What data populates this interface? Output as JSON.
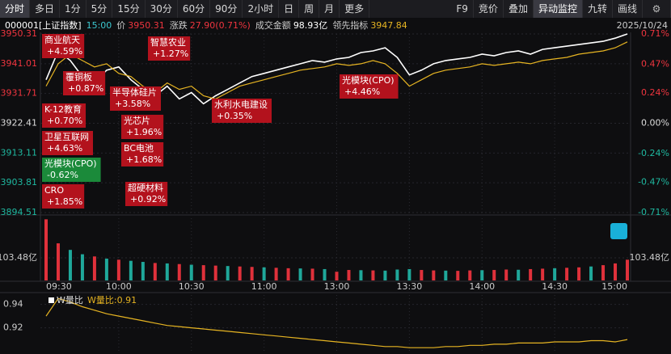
{
  "toolbar": {
    "left": [
      "分时",
      "多日",
      "1分",
      "5分",
      "15分",
      "30分",
      "60分",
      "90分",
      "2小时",
      "日",
      "周",
      "月",
      "更多"
    ],
    "right": [
      "F9",
      "竞价",
      "叠加",
      "异动监控",
      "九转",
      "画线"
    ]
  },
  "header": {
    "code": "000001[上证指数]",
    "time": "15:00",
    "price_label": "价",
    "price": 3950.31,
    "change_label": "涨跌",
    "change": "27.90(0.71%)",
    "turnover_label": "成交金额",
    "turnover": "98.93亿",
    "leading_label": "领先指标",
    "leading": 3947.84,
    "date": "2025/10/24"
  },
  "annotations": [
    {
      "text": "商业航天",
      "value": 4.59,
      "value_label": "+4.59%"
    },
    {
      "text": "覆铜板",
      "value": 0.87,
      "value_label": "+0.87%"
    },
    {
      "text": "K-12教育",
      "value": 0.7,
      "value_label": "+0.70%"
    },
    {
      "text": "卫星互联网",
      "value": 4.63,
      "value_label": "+4.63%"
    },
    {
      "text": "光模块(CPO)",
      "value": -0.62,
      "value_label": "-0.62%"
    },
    {
      "text": "CRO",
      "value": 1.85,
      "value_label": "+1.85%"
    },
    {
      "text": "智慧农业",
      "value": 1.27,
      "value_label": "+1.27%"
    },
    {
      "text": "半导体硅片",
      "value": 3.58,
      "value_label": "+3.58%"
    },
    {
      "text": "光芯片",
      "value": 1.96,
      "value_label": "+1.96%"
    },
    {
      "text": "BC电池",
      "value": 1.68,
      "value_label": "+1.68%"
    },
    {
      "text": "超硬材料",
      "value": 0.92,
      "value_label": "+0.92%"
    },
    {
      "text": "水利水电建设",
      "value": 0.35,
      "value_label": "+0.35%"
    },
    {
      "text": "光模块(CPO)",
      "value": 4.46,
      "value_label": "+4.46%"
    }
  ],
  "chart_data": [
    {
      "type": "line",
      "categories": [
        "09:30",
        null,
        null,
        null,
        null,
        null,
        "10:00",
        null,
        null,
        null,
        null,
        null,
        "10:30",
        null,
        null,
        null,
        null,
        null,
        "11:00",
        null,
        null,
        null,
        null,
        null,
        "13:00",
        null,
        null,
        null,
        null,
        null,
        "13:30",
        null,
        null,
        null,
        null,
        null,
        "14:00",
        null,
        null,
        null,
        null,
        null,
        "14:30",
        null,
        null,
        null,
        null,
        null,
        "15:00"
      ],
      "series": [
        {
          "color": "#ffffff",
          "values": [
            3936,
            3945,
            3942,
            3937,
            3935,
            3939,
            3940,
            3936,
            3933,
            3931,
            3934,
            3930,
            3932,
            3928.5,
            3931,
            3933,
            3935,
            3937,
            3938,
            3939,
            3940,
            3941,
            3942,
            3941.5,
            3942.5,
            3943,
            3944.5,
            3945,
            3946,
            3943,
            3937.5,
            3939,
            3941,
            3942,
            3942.5,
            3943,
            3944,
            3943.5,
            3944.5,
            3945,
            3944,
            3945.5,
            3946,
            3946.5,
            3947,
            3947.5,
            3948,
            3949,
            3950.31
          ]
        },
        {
          "color": "#e6b422",
          "values": [
            3934,
            3941,
            3944,
            3942,
            3940,
            3941,
            3938,
            3937,
            3934,
            3932,
            3935,
            3933,
            3934,
            3931,
            3930,
            3932,
            3934,
            3935,
            3936,
            3937,
            3938,
            3939,
            3939.5,
            3940,
            3941,
            3940.5,
            3941,
            3942,
            3941,
            3938,
            3934,
            3936,
            3938,
            3939,
            3939.5,
            3940,
            3941,
            3940.5,
            3941,
            3941.5,
            3941,
            3942,
            3942.5,
            3943,
            3944,
            3944.5,
            3945,
            3946,
            3947.84
          ]
        }
      ],
      "ylim": [
        3894.51,
        3950.31
      ],
      "yticks": [
        3950.31,
        3941.01,
        3931.71,
        3922.41,
        3913.11,
        3903.81,
        3894.51
      ],
      "y2lim": [
        -0.71,
        0.71
      ],
      "y2ticks": [
        {
          "value": 0.71,
          "label": "0.71%"
        },
        {
          "value": 0.47,
          "label": "0.47%"
        },
        {
          "value": 0.24,
          "label": "0.24%"
        },
        {
          "value": 0,
          "label": "0.00%"
        },
        {
          "value": -0.24,
          "label": "-0.24%"
        },
        {
          "value": -0.47,
          "label": "-0.47%"
        },
        {
          "value": -0.71,
          "label": "-0.71%"
        }
      ]
    },
    {
      "type": "bar",
      "values": [
        280,
        170,
        140,
        120,
        110,
        100,
        95,
        90,
        85,
        80,
        78,
        75,
        72,
        70,
        68,
        66,
        64,
        62,
        60,
        58,
        56,
        55,
        54,
        52,
        40,
        48,
        47,
        46,
        45,
        50,
        52,
        48,
        46,
        45,
        44,
        46,
        47,
        48,
        50,
        49,
        52,
        54,
        56,
        58,
        60,
        64,
        70,
        78,
        95
      ],
      "colors": [
        "#e0313b",
        "#e0313b",
        "#1fa89a",
        "#1fa89a",
        "#e0313b",
        "#1fa89a",
        "#e0313b",
        "#1fa89a",
        "#1fa89a",
        "#e0313b",
        "#1fa89a",
        "#e0313b",
        "#1fa89a",
        "#e0313b",
        "#e0313b",
        "#1fa89a",
        "#e0313b",
        "#e0313b",
        "#1fa89a",
        "#e0313b",
        "#e0313b",
        "#1fa89a",
        "#e0313b",
        "#1fa89a",
        "#e0313b",
        "#e0313b",
        "#1fa89a",
        "#e0313b",
        "#1fa89a",
        "#1fa89a",
        "#1fa89a",
        "#e0313b",
        "#e0313b",
        "#1fa89a",
        "#e0313b",
        "#e0313b",
        "#1fa89a",
        "#e0313b",
        "#e0313b",
        "#1fa89a",
        "#e0313b",
        "#e0313b",
        "#1fa89a",
        "#e0313b",
        "#e0313b",
        "#1fa89a",
        "#e0313b",
        "#e0313b",
        "#e0313b"
      ],
      "ylim": [
        0,
        285
      ],
      "yticks": [
        {
          "value": 103.48,
          "label": "103.48亿"
        }
      ]
    },
    {
      "type": "line",
      "series": [
        {
          "name": "W量比",
          "color": "#e6b422",
          "values": [
            0.93,
            0.945,
            0.942,
            0.938,
            0.935,
            0.932,
            0.93,
            0.928,
            0.926,
            0.924,
            0.922,
            0.921,
            0.92,
            0.919,
            0.918,
            0.917,
            0.916,
            0.915,
            0.914,
            0.913,
            0.912,
            0.911,
            0.91,
            0.909,
            0.908,
            0.907,
            0.906,
            0.905,
            0.904,
            0.904,
            0.903,
            0.903,
            0.903,
            0.904,
            0.904,
            0.905,
            0.905,
            0.906,
            0.906,
            0.907,
            0.907,
            0.907,
            0.908,
            0.908,
            0.908,
            0.909,
            0.909,
            0.908,
            0.91
          ]
        }
      ],
      "current_label": "W量比:0.91",
      "ylim": [
        0.899,
        0.948
      ],
      "yticks": [
        0.94,
        0.92
      ]
    }
  ]
}
